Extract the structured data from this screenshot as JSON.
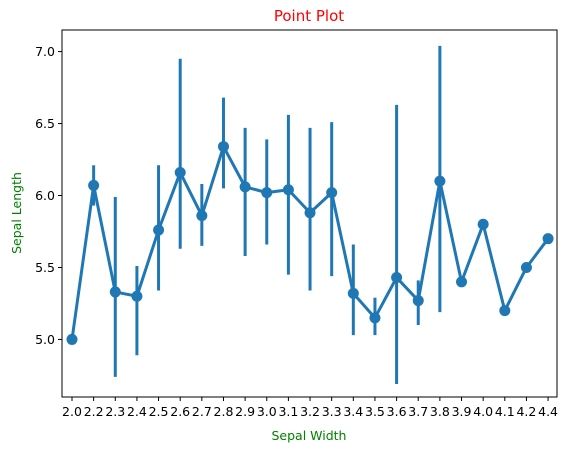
{
  "chart_data": {
    "type": "line",
    "title": "Point Plot",
    "xlabel": "Sepal Width",
    "ylabel": "Sepal Length",
    "categories": [
      "2.0",
      "2.2",
      "2.3",
      "2.4",
      "2.5",
      "2.6",
      "2.7",
      "2.8",
      "2.9",
      "3.0",
      "3.1",
      "3.2",
      "3.3",
      "3.4",
      "3.5",
      "3.6",
      "3.7",
      "3.8",
      "3.9",
      "4.0",
      "4.1",
      "4.2",
      "4.4"
    ],
    "values": [
      5.0,
      6.07,
      5.33,
      5.3,
      5.76,
      6.16,
      5.86,
      6.34,
      6.06,
      6.02,
      6.04,
      5.88,
      6.02,
      5.32,
      5.15,
      5.43,
      5.27,
      6.1,
      5.4,
      5.8,
      5.2,
      5.5,
      5.7
    ],
    "ci_low": [
      5.0,
      5.93,
      4.74,
      4.89,
      5.34,
      5.63,
      5.65,
      6.05,
      5.58,
      5.66,
      5.45,
      5.34,
      5.44,
      5.03,
      5.03,
      4.69,
      5.1,
      5.19,
      5.4,
      5.8,
      5.2,
      5.5,
      5.7
    ],
    "ci_high": [
      5.0,
      6.21,
      5.99,
      5.51,
      6.21,
      6.95,
      6.08,
      6.68,
      6.47,
      6.39,
      6.56,
      6.47,
      6.51,
      5.66,
      5.29,
      6.63,
      5.41,
      7.04,
      5.4,
      5.8,
      5.2,
      5.5,
      5.7
    ],
    "yticks": [
      "5.0",
      "5.5",
      "6.0",
      "6.5",
      "7.0"
    ],
    "ylim": [
      4.6,
      7.15
    ],
    "grid": false,
    "colors": {
      "series": "#1f77b4",
      "title": "#ff0000",
      "axis_label": "#008000",
      "axes": "#000000"
    }
  }
}
